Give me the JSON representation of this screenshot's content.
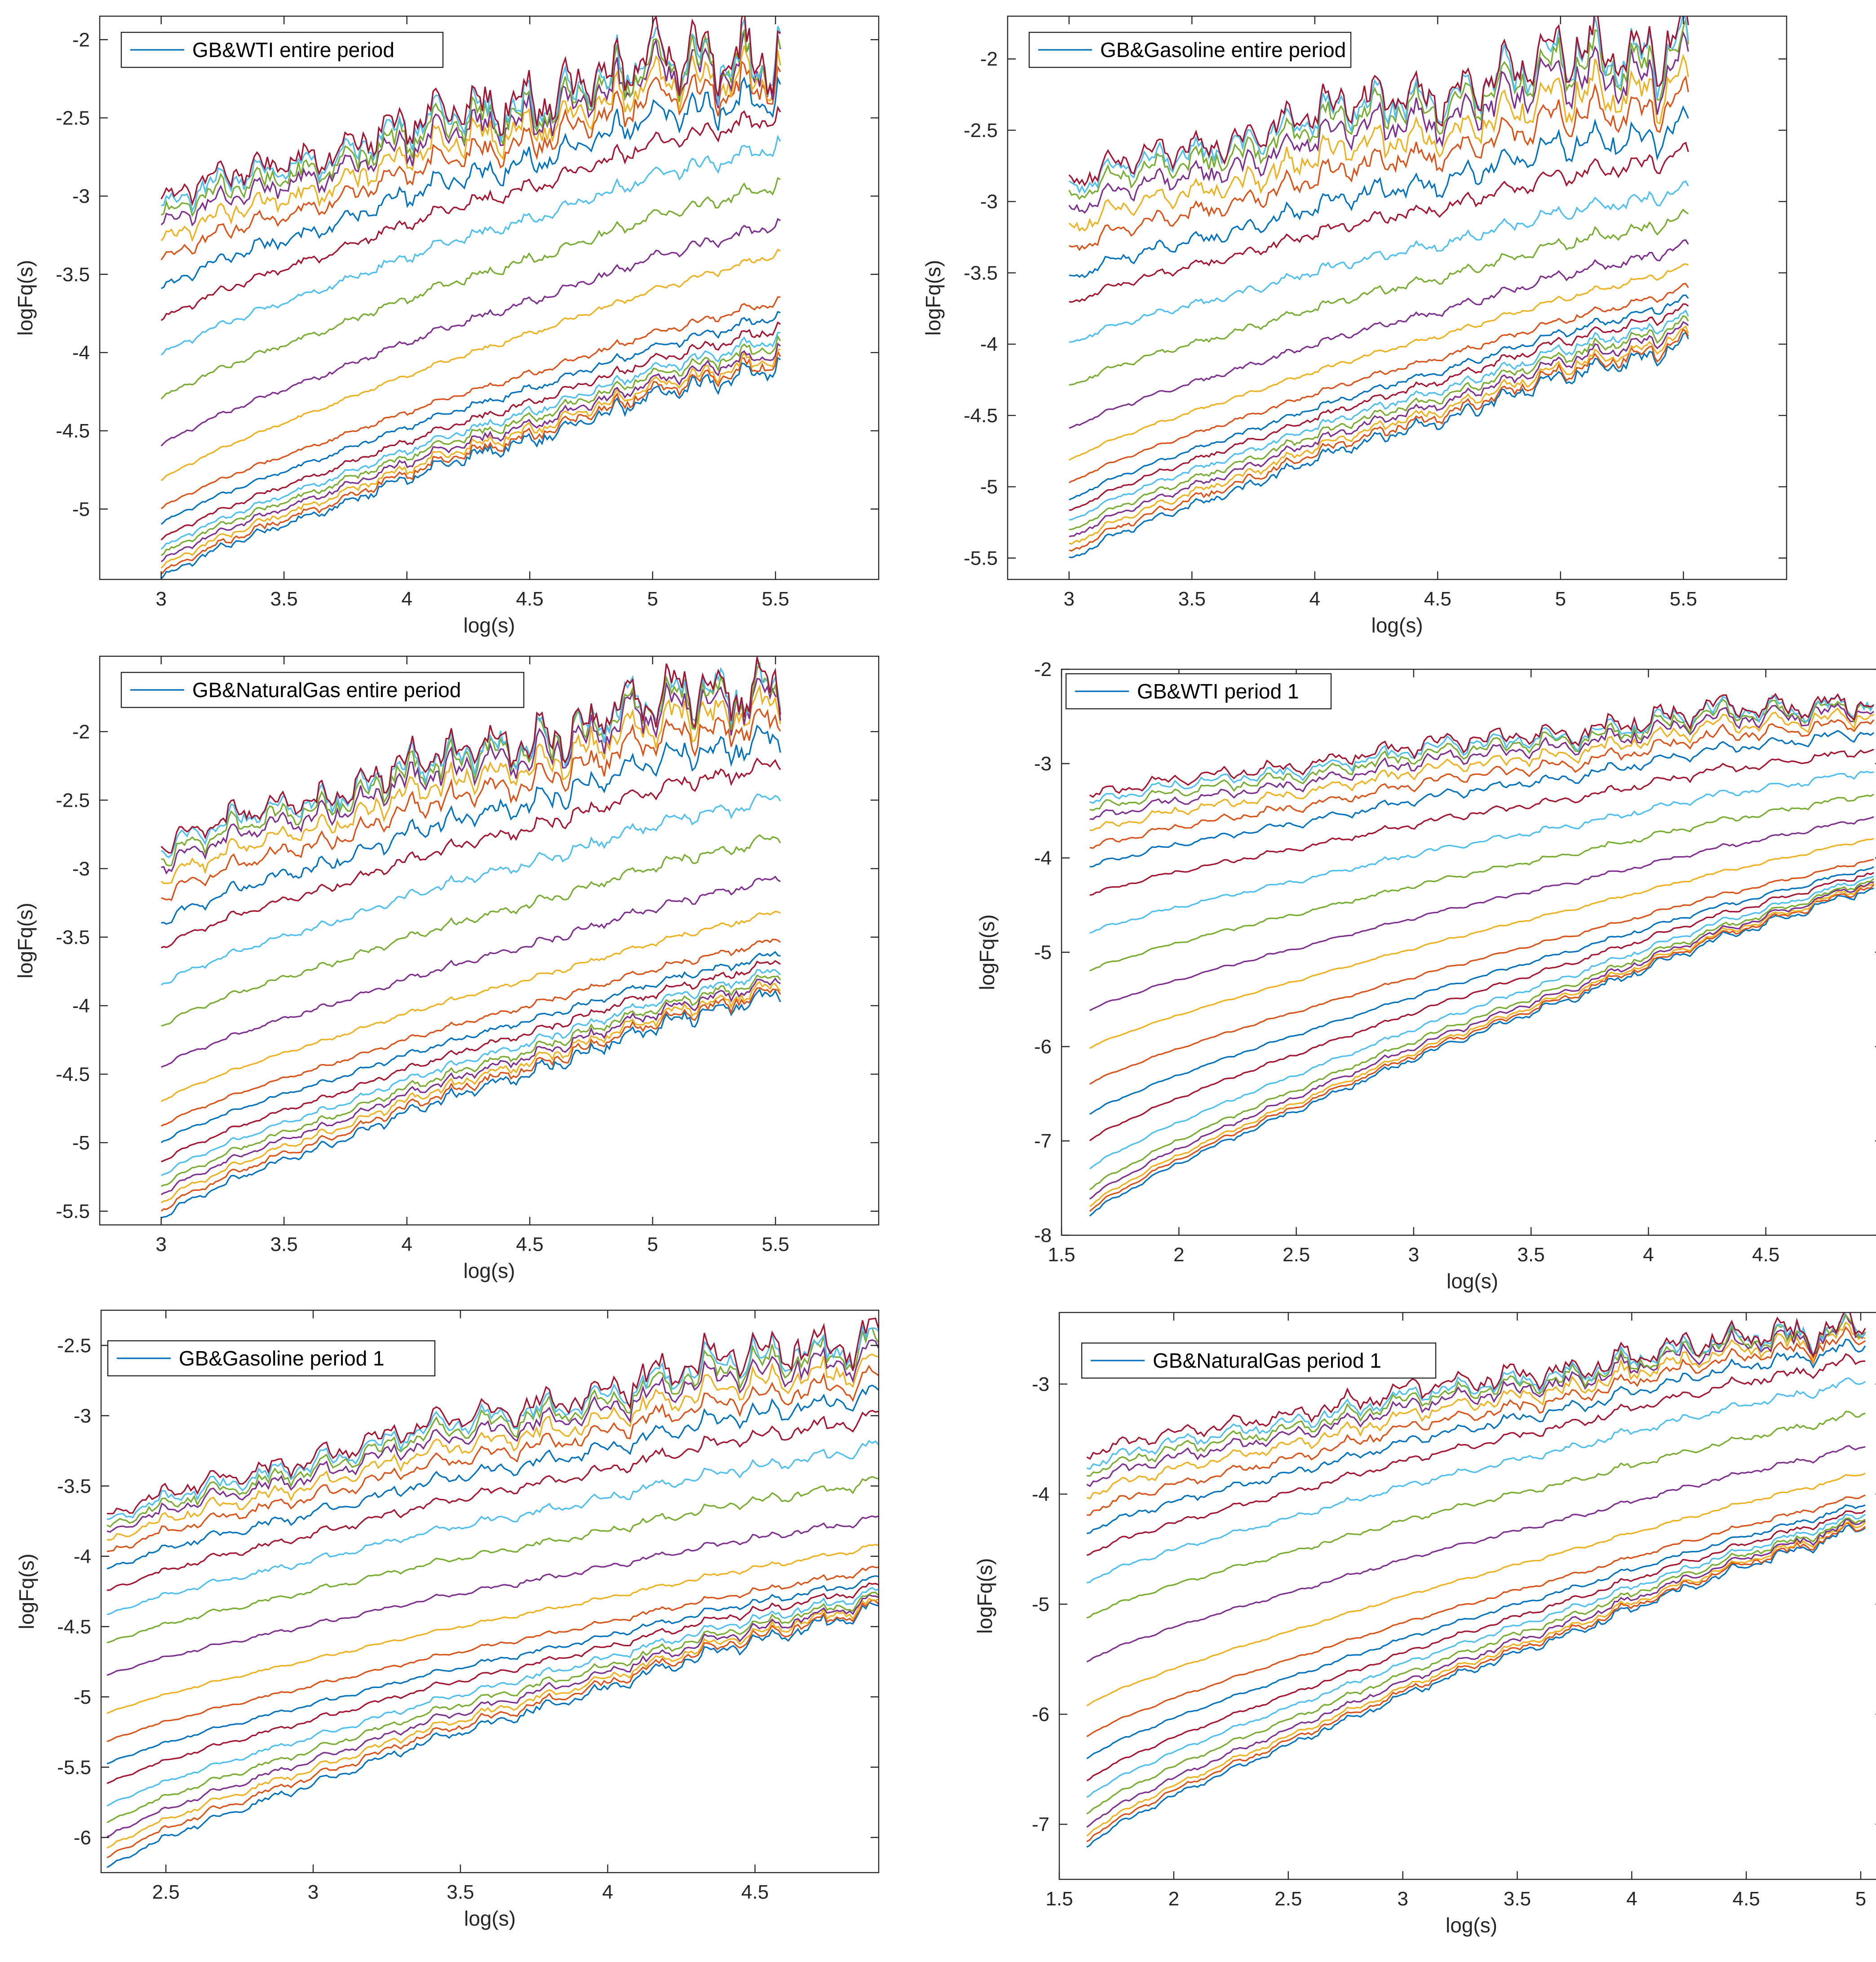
{
  "colors": [
    "#0072BD",
    "#D95319",
    "#EDB120",
    "#7E2F8E",
    "#77AC30",
    "#4DBEEE",
    "#A2142F"
  ],
  "chart_data": [
    {
      "id": "gb-wti-entire",
      "type": "line",
      "title": "",
      "legend": "GB&WTI entire period",
      "legend_position": "top-left",
      "xlabel": "log(s)",
      "ylabel": "logFq(s)",
      "xlim": [
        2.75,
        5.92
      ],
      "ylim": [
        -5.45,
        -1.85
      ],
      "xticks": [
        3,
        3.5,
        4,
        4.5,
        5,
        5.5
      ],
      "xtick_labels": [
        "3",
        "3.5",
        "4",
        "4.5",
        "5",
        "5.5"
      ],
      "yticks": [
        -5,
        -4.5,
        -4,
        -3.5,
        -3,
        -2.5,
        -2
      ],
      "ytick_labels": [
        "-5",
        "-4.5",
        "-4",
        "-3.5",
        "-3",
        "-2.5",
        "-2"
      ],
      "x_range": [
        3.0,
        5.52
      ],
      "series_count": 21,
      "q_values": [
        -5,
        -4.5,
        -4,
        -3.5,
        -3,
        -2.5,
        -2,
        -1.5,
        -1,
        -0.5,
        0,
        0.5,
        1,
        1.5,
        2,
        2.5,
        3,
        3.5,
        4,
        4.5,
        5
      ],
      "series_start": [
        -5.45,
        -5.42,
        -5.38,
        -5.34,
        -5.3,
        -5.26,
        -5.2,
        -5.1,
        -5.0,
        -4.82,
        -4.6,
        -4.3,
        -4.02,
        -3.8,
        -3.6,
        -3.42,
        -3.3,
        -3.2,
        -3.14,
        -3.08,
        -3.04
      ],
      "series_end": [
        -4.05,
        -4.02,
        -3.99,
        -3.96,
        -3.92,
        -3.88,
        -3.82,
        -3.74,
        -3.65,
        -3.35,
        -3.15,
        -2.9,
        -2.65,
        -2.45,
        -2.3,
        -2.2,
        -2.13,
        -2.08,
        -2.04,
        -2.01,
        -1.98
      ],
      "noise": [
        0.07,
        0.065,
        0.06,
        0.055,
        0.05,
        0.045,
        0.04,
        0.035,
        0.03,
        0.025,
        0.04,
        0.05,
        0.06,
        0.07,
        0.12,
        0.15,
        0.18,
        0.2,
        0.22,
        0.23,
        0.24
      ]
    },
    {
      "id": "gb-gasoline-entire",
      "type": "line",
      "title": "",
      "legend": "GB&Gasoline entire period",
      "legend_position": "top-left",
      "xlabel": "log(s)",
      "ylabel": "logFq(s)",
      "xlim": [
        2.75,
        5.92
      ],
      "ylim": [
        -5.65,
        -1.7
      ],
      "xticks": [
        3,
        3.5,
        4,
        4.5,
        5,
        5.5
      ],
      "xtick_labels": [
        "3",
        "3.5",
        "4",
        "4.5",
        "5",
        "5.5"
      ],
      "yticks": [
        -5.5,
        -5,
        -4.5,
        -4,
        -3.5,
        -3,
        -2.5,
        -2
      ],
      "ytick_labels": [
        "-5.5",
        "-5",
        "-4.5",
        "-4",
        "-3.5",
        "-3",
        "-2.5",
        "-2"
      ],
      "x_range": [
        3.0,
        5.52
      ],
      "series_count": 21,
      "q_values": [
        -5,
        -4.5,
        -4,
        -3.5,
        -3,
        -2.5,
        -2,
        -1.5,
        -1,
        -0.5,
        0,
        0.5,
        1,
        1.5,
        2,
        2.5,
        3,
        3.5,
        4,
        4.5,
        5
      ],
      "series_start": [
        -5.52,
        -5.47,
        -5.42,
        -5.37,
        -5.32,
        -5.25,
        -5.18,
        -5.1,
        -4.98,
        -4.82,
        -4.6,
        -4.3,
        -4.0,
        -3.72,
        -3.55,
        -3.35,
        -3.2,
        -3.08,
        -2.98,
        -2.92,
        -2.88
      ],
      "series_end": [
        -3.98,
        -3.95,
        -3.92,
        -3.88,
        -3.84,
        -3.8,
        -3.74,
        -3.68,
        -3.6,
        -3.45,
        -3.3,
        -3.1,
        -2.9,
        -2.65,
        -2.45,
        -2.25,
        -2.12,
        -2.0,
        -1.92,
        -1.86,
        -1.82
      ],
      "noise": [
        0.07,
        0.065,
        0.06,
        0.055,
        0.05,
        0.045,
        0.04,
        0.035,
        0.03,
        0.025,
        0.04,
        0.05,
        0.06,
        0.07,
        0.12,
        0.15,
        0.18,
        0.2,
        0.22,
        0.23,
        0.24
      ]
    },
    {
      "id": "gb-naturalgas-entire",
      "type": "line",
      "title": "",
      "legend": "GB&NaturalGas entire period",
      "legend_position": "top-left",
      "xlabel": "log(s)",
      "ylabel": "logFq(s)",
      "xlim": [
        2.75,
        5.92
      ],
      "ylim": [
        -5.6,
        -1.45
      ],
      "xticks": [
        3,
        3.5,
        4,
        4.5,
        5,
        5.5
      ],
      "xtick_labels": [
        "3",
        "3.5",
        "4",
        "4.5",
        "5",
        "5.5"
      ],
      "yticks": [
        -5.5,
        -5,
        -4.5,
        -4,
        -3.5,
        -3,
        -2.5,
        -2
      ],
      "ytick_labels": [
        "-5.5",
        "-5",
        "-4.5",
        "-4",
        "-3.5",
        "-3",
        "-2.5",
        "-2"
      ],
      "x_range": [
        3.0,
        5.52
      ],
      "series_count": 21,
      "q_values": [
        -5,
        -4.5,
        -4,
        -3.5,
        -3,
        -2.5,
        -2,
        -1.5,
        -1,
        -0.5,
        0,
        0.5,
        1,
        1.5,
        2,
        2.5,
        3,
        3.5,
        4,
        4.5,
        5
      ],
      "series_start": [
        -5.55,
        -5.5,
        -5.44,
        -5.38,
        -5.32,
        -5.24,
        -5.14,
        -5.0,
        -4.88,
        -4.7,
        -4.45,
        -4.15,
        -3.85,
        -3.58,
        -3.4,
        -3.22,
        -3.1,
        -3.0,
        -2.94,
        -2.88,
        -2.85
      ],
      "series_end": [
        -3.88,
        -3.85,
        -3.82,
        -3.79,
        -3.76,
        -3.72,
        -3.66,
        -3.6,
        -3.5,
        -3.3,
        -3.05,
        -2.75,
        -2.45,
        -2.2,
        -2.0,
        -1.85,
        -1.74,
        -1.66,
        -1.61,
        -1.58,
        -1.56
      ],
      "noise": [
        0.07,
        0.065,
        0.06,
        0.055,
        0.05,
        0.045,
        0.04,
        0.035,
        0.03,
        0.025,
        0.04,
        0.05,
        0.06,
        0.07,
        0.12,
        0.15,
        0.18,
        0.2,
        0.22,
        0.23,
        0.24
      ]
    },
    {
      "id": "gb-wti-period1",
      "type": "line",
      "title": "",
      "legend": "GB&WTI period 1",
      "legend_position": "top-left",
      "xlabel": "log(s)",
      "ylabel": "logFq(s)",
      "xlim": [
        1.5,
        5.0
      ],
      "ylim": [
        -8,
        -2
      ],
      "xticks": [
        1.5,
        2,
        2.5,
        3,
        3.5,
        4,
        4.5,
        5
      ],
      "xtick_labels": [
        "1.5",
        "2",
        "2.5",
        "3",
        "3.5",
        "4",
        "4.5",
        "5"
      ],
      "yticks": [
        -8,
        -7,
        -6,
        -5,
        -4,
        -3,
        -2
      ],
      "ytick_labels": [
        "-8",
        "-7",
        "-6",
        "-5",
        "-4",
        "-3",
        "-2"
      ],
      "x_range": [
        1.62,
        4.96
      ],
      "series_count": 21,
      "q_values": [
        -5,
        -4.5,
        -4,
        -3.5,
        -3,
        -2.5,
        -2,
        -1.5,
        -1,
        -0.5,
        0,
        0.5,
        1,
        1.5,
        2,
        2.5,
        3,
        3.5,
        4,
        4.5,
        5
      ],
      "series_start": [
        -7.8,
        -7.75,
        -7.7,
        -7.62,
        -7.52,
        -7.3,
        -7.0,
        -6.72,
        -6.4,
        -6.02,
        -5.62,
        -5.2,
        -4.8,
        -4.4,
        -4.1,
        -3.9,
        -3.72,
        -3.6,
        -3.5,
        -3.42,
        -3.35
      ],
      "series_end": [
        -4.28,
        -4.26,
        -4.24,
        -4.22,
        -4.2,
        -4.17,
        -4.13,
        -4.08,
        -4.0,
        -3.78,
        -3.55,
        -3.3,
        -3.05,
        -2.82,
        -2.62,
        -2.5,
        -2.42,
        -2.36,
        -2.32,
        -2.29,
        -2.27
      ],
      "noise": [
        0.06,
        0.055,
        0.05,
        0.05,
        0.045,
        0.04,
        0.035,
        0.03,
        0.025,
        0.02,
        0.03,
        0.04,
        0.05,
        0.06,
        0.08,
        0.1,
        0.12,
        0.13,
        0.14,
        0.15,
        0.16
      ]
    },
    {
      "id": "gb-gasoline-period1",
      "type": "line",
      "title": "",
      "legend": "GB&Gasoline period 1",
      "legend_position": "top-left",
      "xlabel": "log(s)",
      "ylabel": "logFq(s)",
      "xlim": [
        2.28,
        4.92
      ],
      "ylim": [
        -6.25,
        -2.25
      ],
      "xticks": [
        2.5,
        3,
        3.5,
        4,
        4.5
      ],
      "xtick_labels": [
        "2.5",
        "3",
        "3.5",
        "4",
        "4.5"
      ],
      "yticks": [
        -6,
        -5.5,
        -5,
        -4.5,
        -4,
        -3.5,
        -3,
        -2.5
      ],
      "ytick_labels": [
        "-6",
        "-5.5",
        "-5",
        "-4.5",
        "-4",
        "-3.5",
        "-3",
        "-2.5"
      ],
      "x_range": [
        2.3,
        4.92
      ],
      "series_count": 21,
      "q_values": [
        -5,
        -4.5,
        -4,
        -3.5,
        -3,
        -2.5,
        -2,
        -1.5,
        -1,
        -0.5,
        0,
        0.5,
        1,
        1.5,
        2,
        2.5,
        3,
        3.5,
        4,
        4.5,
        5
      ],
      "series_start": [
        -6.22,
        -6.15,
        -6.08,
        -6.0,
        -5.9,
        -5.78,
        -5.62,
        -5.48,
        -5.32,
        -5.12,
        -4.85,
        -4.62,
        -4.42,
        -4.25,
        -4.1,
        -3.98,
        -3.9,
        -3.84,
        -3.8,
        -3.76,
        -3.72
      ],
      "series_end": [
        -4.35,
        -4.33,
        -4.31,
        -4.29,
        -4.27,
        -4.24,
        -4.2,
        -4.15,
        -4.08,
        -3.92,
        -3.72,
        -3.45,
        -3.2,
        -2.98,
        -2.82,
        -2.7,
        -2.6,
        -2.52,
        -2.46,
        -2.42,
        -2.38
      ],
      "noise": [
        0.06,
        0.055,
        0.05,
        0.05,
        0.045,
        0.04,
        0.035,
        0.03,
        0.025,
        0.02,
        0.03,
        0.04,
        0.05,
        0.06,
        0.08,
        0.1,
        0.12,
        0.13,
        0.14,
        0.15,
        0.16
      ]
    },
    {
      "id": "gb-naturalgas-period1",
      "type": "line",
      "title": "",
      "legend": "GB&NaturalGas period 1",
      "legend_position": "top-left",
      "xlabel": "log(s)",
      "ylabel": "logFq(s)",
      "xlim": [
        1.5,
        5.1
      ],
      "ylim": [
        -7.5,
        -2.35
      ],
      "xticks": [
        1.5,
        2,
        2.5,
        3,
        3.5,
        4,
        4.5,
        5
      ],
      "xtick_labels": [
        "1.5",
        "2",
        "2.5",
        "3",
        "3.5",
        "4",
        "4.5",
        "5"
      ],
      "yticks": [
        -7,
        -6,
        -5,
        -4,
        -3
      ],
      "ytick_labels": [
        "-7",
        "-6",
        "-5",
        "-4",
        "-3"
      ],
      "x_range": [
        1.62,
        5.02
      ],
      "series_count": 21,
      "q_values": [
        -5,
        -4.5,
        -4,
        -3.5,
        -3,
        -2.5,
        -2,
        -1.5,
        -1,
        -0.5,
        0,
        0.5,
        1,
        1.5,
        2,
        2.5,
        3,
        3.5,
        4,
        4.5,
        5
      ],
      "series_start": [
        -7.2,
        -7.15,
        -7.1,
        -7.02,
        -6.9,
        -6.75,
        -6.6,
        -6.4,
        -6.2,
        -5.92,
        -5.52,
        -5.12,
        -4.8,
        -4.55,
        -4.35,
        -4.18,
        -4.02,
        -3.9,
        -3.82,
        -3.75,
        -3.65
      ],
      "series_end": [
        -4.28,
        -4.26,
        -4.24,
        -4.22,
        -4.2,
        -4.17,
        -4.13,
        -4.08,
        -4.0,
        -3.8,
        -3.55,
        -3.25,
        -2.95,
        -2.75,
        -2.62,
        -2.55,
        -2.5,
        -2.47,
        -2.45,
        -2.43,
        -2.42
      ],
      "noise": [
        0.06,
        0.055,
        0.05,
        0.05,
        0.045,
        0.04,
        0.035,
        0.03,
        0.025,
        0.02,
        0.03,
        0.04,
        0.05,
        0.06,
        0.08,
        0.1,
        0.12,
        0.13,
        0.14,
        0.15,
        0.16
      ]
    }
  ]
}
